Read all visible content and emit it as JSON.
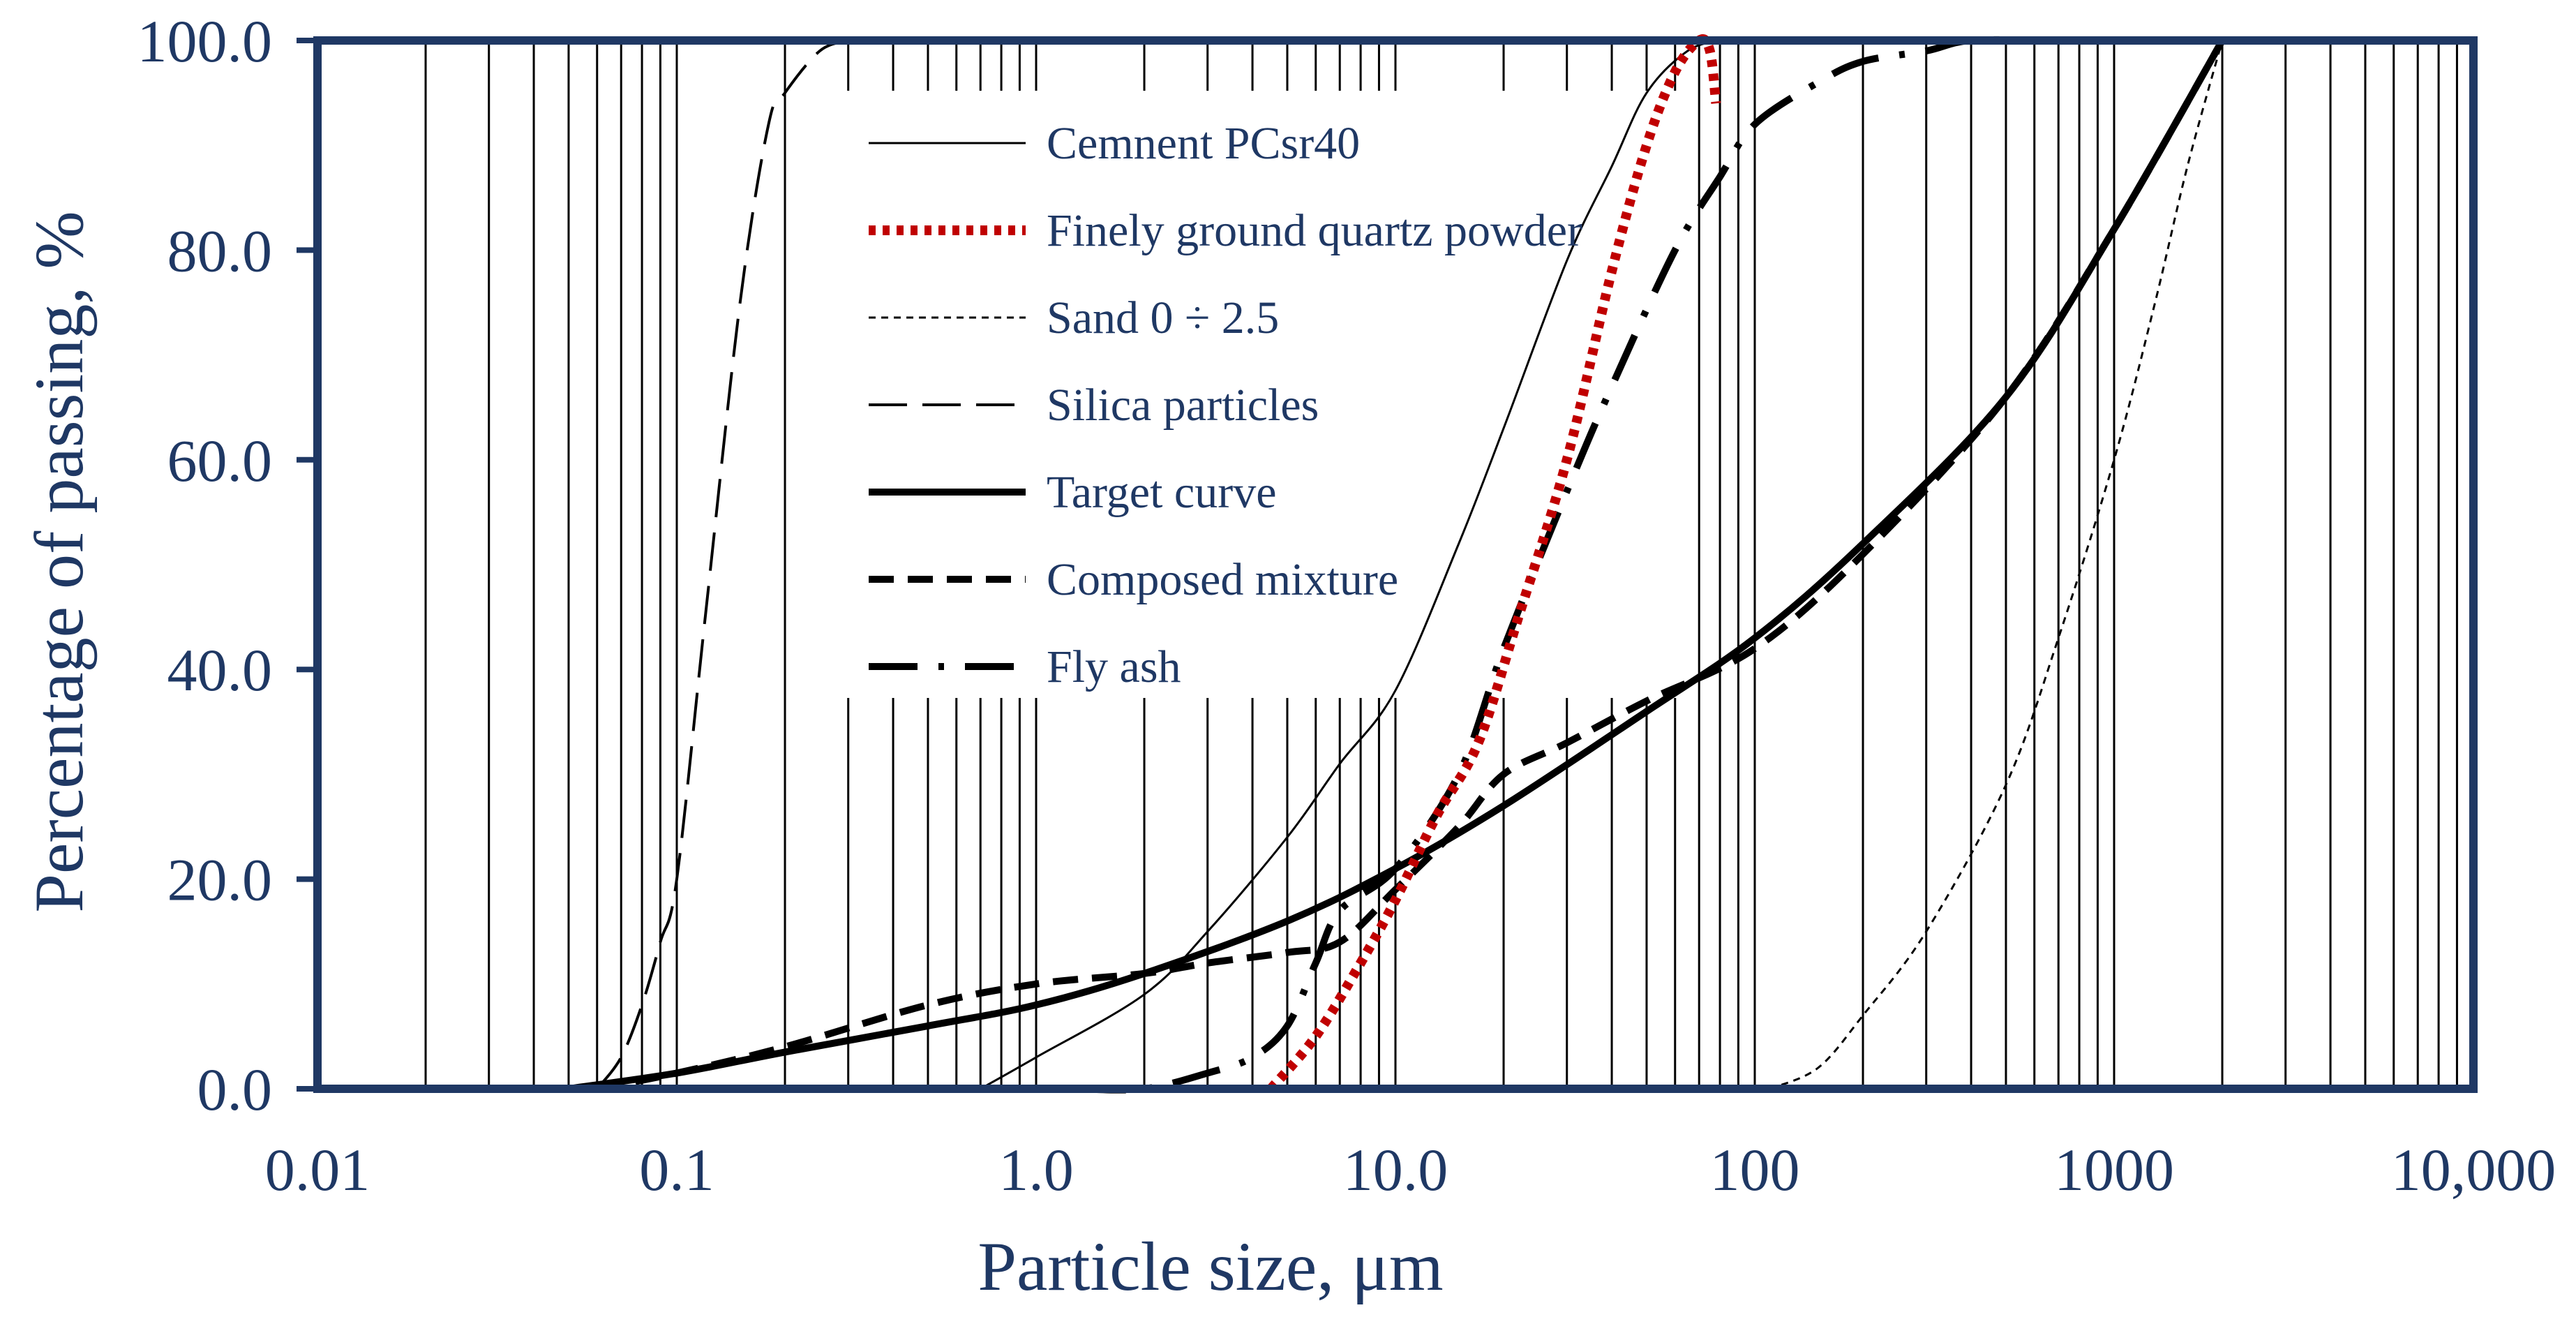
{
  "colors": {
    "axis": "#1f3864",
    "text": "#1f3864",
    "grid": "#000000",
    "curve": "#000000",
    "quartz": "#c00000",
    "background": "#ffffff"
  },
  "chart_data": {
    "type": "line",
    "title": "",
    "xlabel": "Particle size, μm",
    "ylabel": "Percentage of passing, %",
    "xscale": "log",
    "xlim": [
      0.01,
      10000
    ],
    "ylim": [
      0,
      100
    ],
    "grid": "vertical log gridlines",
    "legend_position": "top-center",
    "x_ticks": [
      {
        "value": 0.01,
        "label": "0.01"
      },
      {
        "value": 0.1,
        "label": "0.1"
      },
      {
        "value": 1,
        "label": "1.0"
      },
      {
        "value": 10,
        "label": "10.0"
      },
      {
        "value": 100,
        "label": "100"
      },
      {
        "value": 1000,
        "label": "1000"
      },
      {
        "value": 10000,
        "label": "10,000"
      }
    ],
    "y_ticks": [
      {
        "value": 0,
        "label": "0.0"
      },
      {
        "value": 20,
        "label": "20.0"
      },
      {
        "value": 40,
        "label": "40.0"
      },
      {
        "value": 60,
        "label": "60.0"
      },
      {
        "value": 80,
        "label": "80.0"
      },
      {
        "value": 100,
        "label": "100.0"
      }
    ],
    "series": [
      {
        "name": "Cemnent PCsr40",
        "style": "thin-solid",
        "points": [
          [
            0.7,
            0
          ],
          [
            1,
            3
          ],
          [
            2,
            9
          ],
          [
            3,
            15
          ],
          [
            5,
            24
          ],
          [
            7,
            31
          ],
          [
            10,
            38
          ],
          [
            15,
            52
          ],
          [
            20,
            63
          ],
          [
            30,
            79
          ],
          [
            40,
            88
          ],
          [
            50,
            95
          ],
          [
            65,
            99
          ],
          [
            80,
            100
          ]
        ]
      },
      {
        "name": "Finely ground quartz powder",
        "style": "red-dotted",
        "points": [
          [
            4.5,
            0
          ],
          [
            6,
            5
          ],
          [
            8,
            12
          ],
          [
            10,
            18
          ],
          [
            13,
            26
          ],
          [
            17,
            33
          ],
          [
            22,
            45
          ],
          [
            30,
            60
          ],
          [
            40,
            78
          ],
          [
            50,
            90
          ],
          [
            60,
            97
          ],
          [
            70,
            100
          ],
          [
            75,
            99
          ],
          [
            78,
            94
          ]
        ]
      },
      {
        "name": "Sand 0 ÷ 2.5",
        "style": "thin-dashed",
        "points": [
          [
            110,
            0
          ],
          [
            150,
            2
          ],
          [
            200,
            7
          ],
          [
            300,
            15
          ],
          [
            500,
            29
          ],
          [
            700,
            43
          ],
          [
            1000,
            60
          ],
          [
            1300,
            75
          ],
          [
            1600,
            88
          ],
          [
            2000,
            100
          ]
        ]
      },
      {
        "name": "Silica particles",
        "style": "long-dashed",
        "points": [
          [
            0.06,
            0
          ],
          [
            0.07,
            3
          ],
          [
            0.08,
            8
          ],
          [
            0.09,
            14
          ],
          [
            0.1,
            20
          ],
          [
            0.12,
            45
          ],
          [
            0.15,
            75
          ],
          [
            0.18,
            92
          ],
          [
            0.2,
            95
          ],
          [
            0.25,
            99
          ],
          [
            0.3,
            100
          ]
        ]
      },
      {
        "name": "Target curve",
        "style": "thick-solid",
        "points": [
          [
            0.05,
            0
          ],
          [
            0.1,
            1.5
          ],
          [
            0.2,
            3.5
          ],
          [
            0.5,
            6
          ],
          [
            1,
            8
          ],
          [
            2,
            11
          ],
          [
            5,
            16
          ],
          [
            10,
            21
          ],
          [
            20,
            27
          ],
          [
            50,
            36
          ],
          [
            100,
            43
          ],
          [
            200,
            52
          ],
          [
            500,
            66
          ],
          [
            1000,
            82
          ],
          [
            2000,
            100
          ]
        ]
      },
      {
        "name": "Composed mixture",
        "style": "thick-dashed",
        "points": [
          [
            0.06,
            0
          ],
          [
            0.1,
            1.5
          ],
          [
            0.2,
            4
          ],
          [
            0.5,
            8
          ],
          [
            1,
            10
          ],
          [
            2,
            11
          ],
          [
            3,
            12
          ],
          [
            5,
            13
          ],
          [
            7,
            14
          ],
          [
            10,
            19
          ],
          [
            15,
            25
          ],
          [
            20,
            30
          ],
          [
            30,
            33
          ],
          [
            50,
            37
          ],
          [
            100,
            42
          ],
          [
            200,
            51
          ],
          [
            500,
            66
          ],
          [
            1000,
            82
          ],
          [
            2000,
            100
          ]
        ]
      },
      {
        "name": "Fly ash",
        "style": "dash-dot",
        "points": [
          [
            1.3,
            0
          ],
          [
            2,
            0
          ],
          [
            3,
            1.5
          ],
          [
            4,
            3
          ],
          [
            5,
            6
          ],
          [
            6,
            12
          ],
          [
            7,
            17
          ],
          [
            10,
            21
          ],
          [
            15,
            30
          ],
          [
            20,
            42
          ],
          [
            30,
            57
          ],
          [
            40,
            67
          ],
          [
            60,
            80
          ],
          [
            80,
            87
          ],
          [
            100,
            92
          ],
          [
            150,
            96
          ],
          [
            200,
            98
          ],
          [
            300,
            99
          ],
          [
            400,
            100
          ],
          [
            700,
            100
          ]
        ]
      }
    ]
  }
}
